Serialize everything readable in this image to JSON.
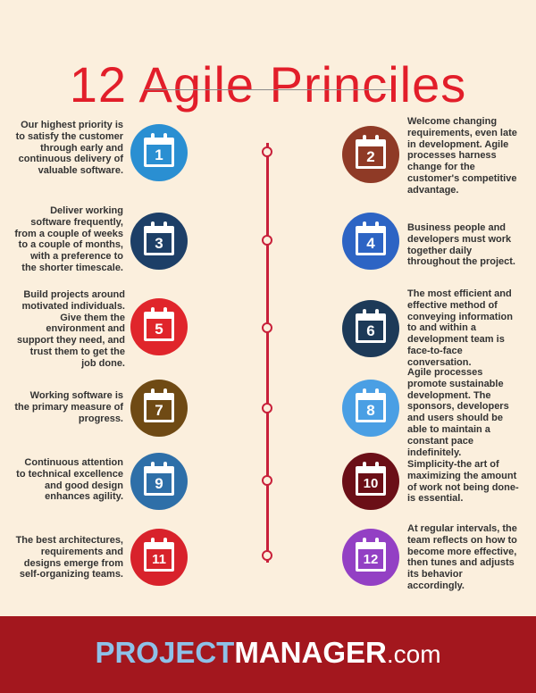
{
  "title": "12 Agile Princiles",
  "brand": {
    "part1": "PROJECT",
    "part2": "MANAGER",
    "part3": ".com"
  },
  "colors": {
    "background": "#fbefdd",
    "title": "#e21e2a",
    "timeline": "#c8203a",
    "footer": "#a3171e"
  },
  "principles": [
    {
      "number": "1",
      "color": "#2a8fd2",
      "side": "left",
      "text": "Our highest priority is to satisfy the customer through early and continuous delivery of valuable software."
    },
    {
      "number": "2",
      "color": "#8f3a26",
      "side": "right",
      "text": "Welcome changing requirements, even late in development. Agile processes harness change for the customer's competitive advantage."
    },
    {
      "number": "3",
      "color": "#1d3f67",
      "side": "left",
      "text": "Deliver working software frequently, from a couple of weeks to a couple of months, with a preference to the shorter timescale."
    },
    {
      "number": "4",
      "color": "#2d64c4",
      "side": "right",
      "text": "Business people and developers must work together daily throughout the project."
    },
    {
      "number": "5",
      "color": "#e0252b",
      "side": "left",
      "text": "Build projects around motivated individuals. Give them the environment and support they need, and trust them to get the job done."
    },
    {
      "number": "6",
      "color": "#1d3a58",
      "side": "right",
      "text": "The most efficient and effective method of conveying information to and within a development team is face-to-face conversation."
    },
    {
      "number": "7",
      "color": "#6f4a14",
      "side": "left",
      "text": "Working software is the primary measure of progress."
    },
    {
      "number": "8",
      "color": "#4a9fe4",
      "side": "right",
      "text": "Agile processes promote sustainable development. The sponsors, developers and users should be able to maintain a constant pace indefinitely."
    },
    {
      "number": "9",
      "color": "#2e6fa8",
      "side": "left",
      "text": "Continuous attention to technical excellence and good design enhances agility."
    },
    {
      "number": "10",
      "color": "#6b0f17",
      "side": "right",
      "text": "Simplicity-the art of maximizing the amount of work not being done-is essential."
    },
    {
      "number": "11",
      "color": "#d8222b",
      "side": "left",
      "text": "The best architectures, requirements and designs emerge from self-organizing teams."
    },
    {
      "number": "12",
      "color": "#9340c4",
      "side": "right",
      "text": "At regular intervals, the team reflects on how to become more effective, then tunes and adjusts its behavior accordingly."
    }
  ]
}
